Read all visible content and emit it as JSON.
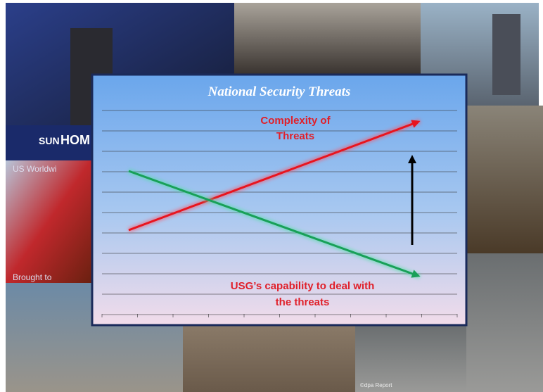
{
  "title": "National Security Threats",
  "labels": {
    "complexity": [
      "Complexity of",
      "Threats"
    ],
    "capability": [
      "USG’s capability to deal with",
      "the threats"
    ]
  },
  "photo_texts": [
    "SUN",
    "HOM",
    "US Worldwi",
    "Brought to",
    "©dpa Report"
  ]
}
